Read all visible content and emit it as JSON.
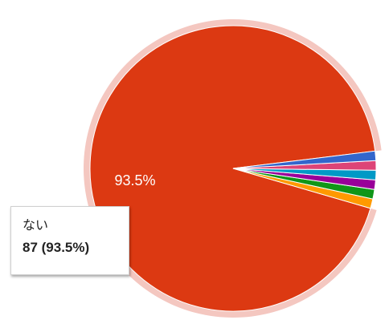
{
  "chart_data": {
    "type": "pie",
    "slices": [
      {
        "label": "ない",
        "value": 87,
        "percent": 93.5,
        "color": "#dc3912",
        "highlighted": true
      },
      {
        "value": 1,
        "color": "#ff9900"
      },
      {
        "value": 1,
        "color": "#109618"
      },
      {
        "value": 1,
        "color": "#990099"
      },
      {
        "value": 1,
        "color": "#0099c6"
      },
      {
        "value": 1,
        "color": "#dd4477"
      },
      {
        "value": 1,
        "color": "#3366cc"
      }
    ],
    "slice_labels": [
      "93.5%"
    ],
    "tooltip": {
      "name": "ない",
      "value": "87 (93.5%)"
    },
    "start_angle_deg": 7,
    "highlight_color": "#f4c7c0"
  }
}
